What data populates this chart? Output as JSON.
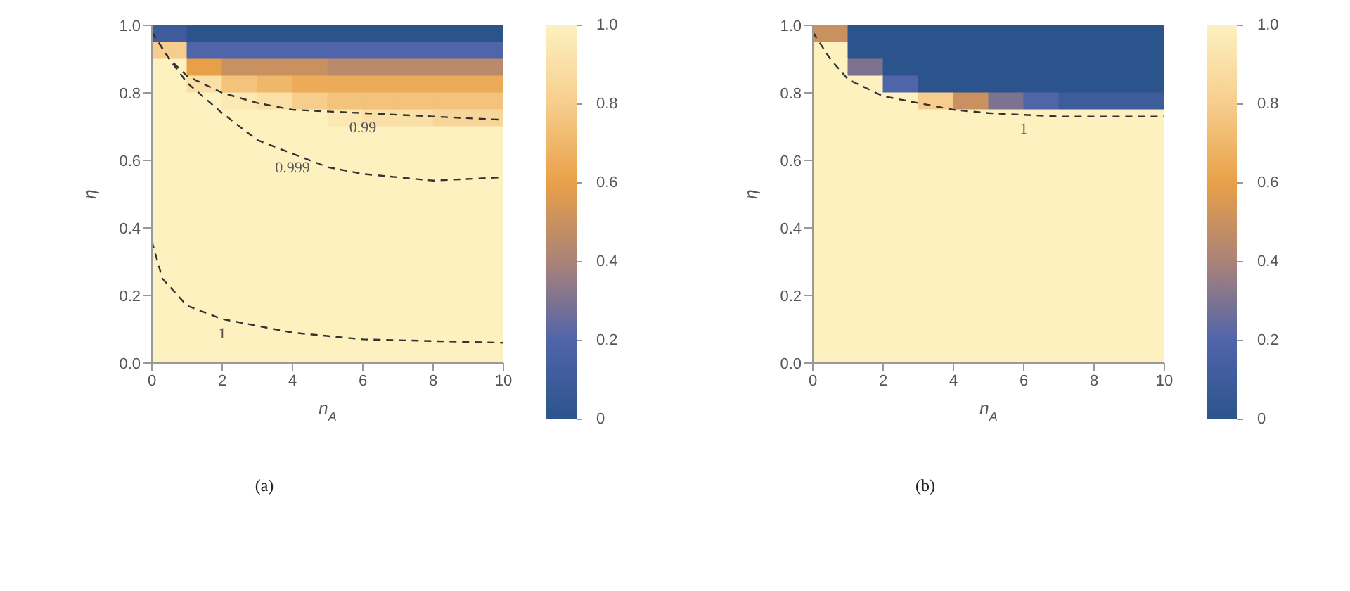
{
  "chart_data": [
    {
      "type": "heatmap",
      "xlabel": "n$_{A}$",
      "ylabel": "η",
      "xlim": [
        0,
        10
      ],
      "ylim": [
        0,
        1
      ],
      "xticks": [
        0,
        2,
        4,
        6,
        8,
        10
      ],
      "yticks": [
        {
          "value": 0,
          "label": "0.0"
        },
        {
          "value": 0.2,
          "label": "0.2"
        },
        {
          "value": 0.4,
          "label": "0.4"
        },
        {
          "value": 0.6,
          "label": "0.6"
        },
        {
          "value": 0.8,
          "label": "0.8"
        },
        {
          "value": 1,
          "label": "1.0"
        }
      ],
      "clim": [
        0,
        1
      ],
      "cticks": [
        0,
        0.2,
        0.4,
        0.6,
        0.8,
        {
          "value": 1,
          "label": "1.0"
        }
      ],
      "cells": [
        [
          0.1,
          0,
          0,
          0,
          0,
          0,
          0,
          0,
          0,
          0
        ],
        [
          0.8,
          0.2,
          0.2,
          0.2,
          0.2,
          0.2,
          0.2,
          0.2,
          0.2,
          0.2
        ],
        [
          1,
          0.6,
          0.5,
          0.5,
          0.5,
          0.45,
          0.45,
          0.45,
          0.45,
          0.45
        ],
        [
          1,
          0.9,
          0.75,
          0.7,
          0.65,
          0.65,
          0.65,
          0.65,
          0.65,
          0.65
        ],
        [
          1,
          1,
          0.95,
          0.9,
          0.8,
          0.75,
          0.75,
          0.75,
          0.75,
          0.75
        ],
        [
          1,
          1,
          1,
          1,
          1,
          0.95,
          0.9,
          0.9,
          0.85,
          0.85
        ],
        [
          1,
          1,
          1,
          1,
          1,
          1,
          1,
          1,
          1,
          1
        ],
        [
          1,
          1,
          1,
          1,
          1,
          1,
          1,
          1,
          1,
          1
        ],
        [
          1,
          1,
          1,
          1,
          1,
          1,
          1,
          1,
          1,
          1
        ],
        [
          1,
          1,
          1,
          1,
          1,
          1,
          1,
          1,
          1,
          1
        ],
        [
          1,
          1,
          1,
          1,
          1,
          1,
          1,
          1,
          1,
          1
        ],
        [
          1,
          1,
          1,
          1,
          1,
          1,
          1,
          1,
          1,
          1
        ],
        [
          1,
          1,
          1,
          1,
          1,
          1,
          1,
          1,
          1,
          1
        ],
        [
          1,
          1,
          1,
          1,
          1,
          1,
          1,
          1,
          1,
          1
        ],
        [
          1,
          1,
          1,
          1,
          1,
          1,
          1,
          1,
          1,
          1
        ],
        [
          1,
          1,
          1,
          1,
          1,
          1,
          1,
          1,
          1,
          1
        ],
        [
          1,
          1,
          1,
          1,
          1,
          1,
          1,
          1,
          1,
          1
        ],
        [
          1,
          1,
          1,
          1,
          1,
          1,
          1,
          1,
          1,
          1
        ],
        [
          1,
          1,
          1,
          1,
          1,
          1,
          1,
          1,
          1,
          1
        ],
        [
          1,
          1,
          1,
          1,
          1,
          1,
          1,
          1,
          1,
          1
        ]
      ],
      "series": [
        {
          "type": "line",
          "color": "#333333",
          "line_style": "dashed",
          "x": [
            0,
            0.5,
            1,
            2,
            3,
            4,
            6,
            8,
            10
          ],
          "values": [
            0.98,
            0.9,
            0.85,
            0.8,
            0.77,
            0.75,
            0.74,
            0.73,
            0.72
          ]
        },
        {
          "type": "line",
          "color": "#333333",
          "line_style": "dashed",
          "x": [
            0,
            0.5,
            1,
            2,
            3,
            4,
            5,
            6,
            8,
            10
          ],
          "values": [
            0.98,
            0.9,
            0.83,
            0.74,
            0.66,
            0.62,
            0.58,
            0.56,
            0.54,
            0.55
          ]
        },
        {
          "type": "line",
          "color": "#333333",
          "line_style": "dashed",
          "x": [
            0,
            0.3,
            1,
            2,
            3,
            4,
            6,
            8,
            10
          ],
          "values": [
            0.36,
            0.25,
            0.17,
            0.13,
            0.11,
            0.09,
            0.07,
            0.065,
            0.06
          ]
        }
      ],
      "annotations": [
        {
          "text": "0.99",
          "x": 6,
          "y": 0.74
        },
        {
          "text": "0.999",
          "x": 4,
          "y": 0.62
        },
        {
          "text": "1",
          "x": 2,
          "y": 0.13
        },
        "(a)"
      ]
    },
    {
      "type": "heatmap",
      "xlabel": "n$_{A}$",
      "ylabel": "η",
      "xlim": [
        0,
        10
      ],
      "ylim": [
        0,
        1
      ],
      "xticks": [
        0,
        2,
        4,
        6,
        8,
        10
      ],
      "yticks": [
        {
          "value": 0,
          "label": "0.0"
        },
        {
          "value": 0.2,
          "label": "0.2"
        },
        {
          "value": 0.4,
          "label": "0.4"
        },
        {
          "value": 0.6,
          "label": "0.6"
        },
        {
          "value": 0.8,
          "label": "0.8"
        },
        {
          "value": 1,
          "label": "1.0"
        }
      ],
      "clim": [
        0,
        1
      ],
      "cticks": [
        0,
        0.2,
        0.4,
        0.6,
        0.8,
        {
          "value": 1,
          "label": "1.0"
        }
      ],
      "cells": [
        [
          0.5,
          0,
          0,
          0,
          0,
          0,
          0,
          0,
          0,
          0
        ],
        [
          1,
          0,
          0,
          0,
          0,
          0,
          0,
          0,
          0,
          0
        ],
        [
          1,
          0.3,
          0,
          0,
          0,
          0,
          0,
          0,
          0,
          0
        ],
        [
          1,
          1,
          0.2,
          0,
          0,
          0,
          0,
          0,
          0,
          0
        ],
        [
          1,
          1,
          1,
          0.8,
          0.5,
          0.3,
          0.2,
          0.1,
          0.1,
          0.1
        ],
        [
          1,
          1,
          1,
          1,
          1,
          1,
          1,
          1,
          1,
          1
        ],
        [
          1,
          1,
          1,
          1,
          1,
          1,
          1,
          1,
          1,
          1
        ],
        [
          1,
          1,
          1,
          1,
          1,
          1,
          1,
          1,
          1,
          1
        ],
        [
          1,
          1,
          1,
          1,
          1,
          1,
          1,
          1,
          1,
          1
        ],
        [
          1,
          1,
          1,
          1,
          1,
          1,
          1,
          1,
          1,
          1
        ],
        [
          1,
          1,
          1,
          1,
          1,
          1,
          1,
          1,
          1,
          1
        ],
        [
          1,
          1,
          1,
          1,
          1,
          1,
          1,
          1,
          1,
          1
        ],
        [
          1,
          1,
          1,
          1,
          1,
          1,
          1,
          1,
          1,
          1
        ],
        [
          1,
          1,
          1,
          1,
          1,
          1,
          1,
          1,
          1,
          1
        ],
        [
          1,
          1,
          1,
          1,
          1,
          1,
          1,
          1,
          1,
          1
        ],
        [
          1,
          1,
          1,
          1,
          1,
          1,
          1,
          1,
          1,
          1
        ],
        [
          1,
          1,
          1,
          1,
          1,
          1,
          1,
          1,
          1,
          1
        ],
        [
          1,
          1,
          1,
          1,
          1,
          1,
          1,
          1,
          1,
          1
        ],
        [
          1,
          1,
          1,
          1,
          1,
          1,
          1,
          1,
          1,
          1
        ],
        [
          1,
          1,
          1,
          1,
          1,
          1,
          1,
          1,
          1,
          1
        ]
      ],
      "series": [
        {
          "type": "line",
          "color": "#333333",
          "line_style": "dashed",
          "x": [
            0,
            0.5,
            1,
            2,
            3,
            4,
            5,
            6,
            7,
            10
          ],
          "values": [
            0.98,
            0.9,
            0.84,
            0.79,
            0.77,
            0.75,
            0.74,
            0.735,
            0.73,
            0.73
          ]
        }
      ],
      "annotations": [
        {
          "text": "1",
          "x": 6,
          "y": 0.735
        },
        "(b)"
      ]
    }
  ]
}
